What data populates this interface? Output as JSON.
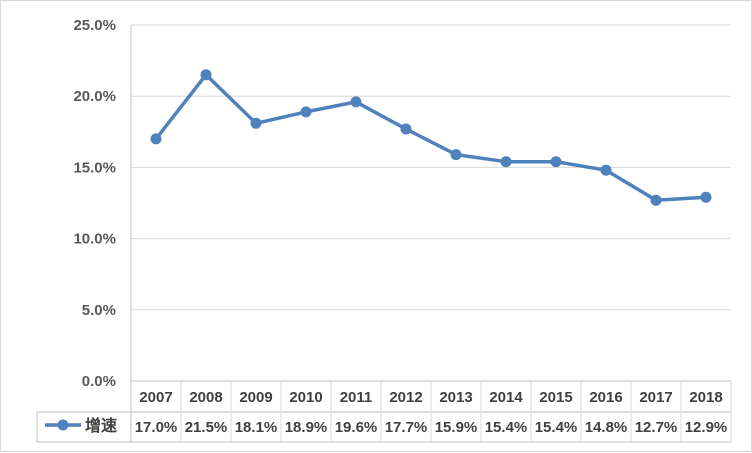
{
  "chart_data": {
    "type": "line",
    "title": "",
    "xlabel": "",
    "ylabel": "",
    "categories": [
      "2007",
      "2008",
      "2009",
      "2010",
      "2011",
      "2012",
      "2013",
      "2014",
      "2015",
      "2016",
      "2017",
      "2018"
    ],
    "series": [
      {
        "name": "增速",
        "values": [
          17.0,
          21.5,
          18.1,
          18.9,
          19.6,
          17.7,
          15.9,
          15.4,
          15.4,
          14.8,
          12.7,
          12.9
        ],
        "labels": [
          "17.0%",
          "21.5%",
          "18.1%",
          "18.9%",
          "19.6%",
          "17.7%",
          "15.9%",
          "15.4%",
          "15.4%",
          "14.8%",
          "12.7%",
          "12.9%"
        ],
        "color": "#4f81bd"
      }
    ],
    "yticks": [
      "0.0%",
      "5.0%",
      "10.0%",
      "15.0%",
      "20.0%",
      "25.0%"
    ],
    "ylim": [
      0,
      25
    ],
    "grid": true,
    "data_table": true,
    "legend": "data-table-left"
  }
}
